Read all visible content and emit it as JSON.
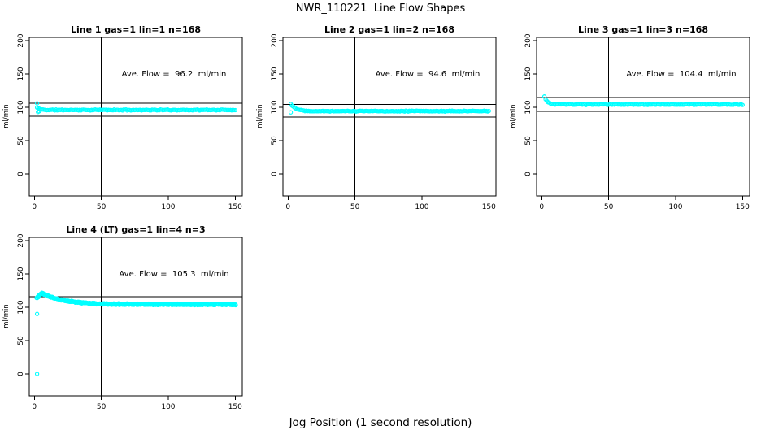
{
  "figure": {
    "title": "NWR_110221  Line Flow Shapes",
    "xlabel": "Jog Position (1 second resolution)",
    "background": "#ffffff",
    "marker_color": "#00FFFF",
    "line_color": "#000000"
  },
  "chart_data": [
    {
      "type": "scatter",
      "title": "Line 1 gas=1 lin=1 n=168",
      "ylabel": "ml/min",
      "annotation": "Ave. Flow =  96.2  ml/min",
      "ave_flow_ml_min": 96.2,
      "n_points": 168,
      "x_range": [
        2,
        150
      ],
      "x_ticks": [
        0,
        50,
        100,
        150
      ],
      "y_ticks": [
        0,
        50,
        100,
        150,
        200
      ],
      "ref_lines": [
        105.8,
        86.6
      ],
      "vline_x": 50,
      "marker": {
        "shape": "open-circle",
        "color": "#00FFFF"
      },
      "outliers": [
        [
          2,
          106
        ],
        [
          2.7,
          93
        ],
        [
          3.6,
          94
        ]
      ],
      "trend": {
        "start": 99.5,
        "peak": 99.5,
        "peak_x": 2,
        "decay_k": 2.0,
        "plateau": 96.0,
        "noise": 0.9,
        "points_per_x": 1,
        "seed": 11
      }
    },
    {
      "type": "scatter",
      "title": "Line 2 gas=1 lin=2 n=168",
      "ylabel": "ml/min",
      "annotation": "Ave. Flow =  94.6  ml/min",
      "ave_flow_ml_min": 94.6,
      "n_points": 168,
      "x_range": [
        2,
        150
      ],
      "x_ticks": [
        0,
        50,
        100,
        150
      ],
      "y_ticks": [
        0,
        50,
        100,
        150,
        200
      ],
      "ref_lines": [
        104.1,
        85.1
      ],
      "vline_x": 50,
      "marker": {
        "shape": "open-circle",
        "color": "#00FFFF"
      },
      "outliers": [
        [
          2,
          92.5
        ]
      ],
      "trend": {
        "start": 105,
        "peak": 105,
        "peak_x": 2,
        "decay_k": 4.0,
        "plateau": 94.3,
        "noise": 0.8,
        "points_per_x": 1,
        "seed": 22
      }
    },
    {
      "type": "scatter",
      "title": "Line 3 gas=1 lin=3 n=168",
      "ylabel": "ml/min",
      "annotation": "Ave. Flow =  104.4  ml/min",
      "ave_flow_ml_min": 104.4,
      "n_points": 168,
      "x_range": [
        2,
        150
      ],
      "x_ticks": [
        0,
        50,
        100,
        150
      ],
      "y_ticks": [
        0,
        50,
        100,
        150,
        200
      ],
      "ref_lines": [
        114.8,
        94.0
      ],
      "vline_x": 50,
      "marker": {
        "shape": "open-circle",
        "color": "#00FFFF"
      },
      "outliers": [
        [
          2,
          116
        ]
      ],
      "trend": {
        "start": 116,
        "peak": 116,
        "peak_x": 2,
        "decay_k": 2.2,
        "plateau": 104.2,
        "noise": 0.8,
        "points_per_x": 1,
        "seed": 33
      }
    },
    {
      "type": "scatter",
      "title": "Line 4 (LT) gas=1 lin=4 n=3",
      "ylabel": "ml/min",
      "annotation": "Ave. Flow =  105.3  ml/min",
      "ave_flow_ml_min": 105.3,
      "n_points": 168,
      "x_range": [
        2,
        150
      ],
      "x_ticks": [
        0,
        50,
        100,
        150
      ],
      "y_ticks": [
        0,
        50,
        100,
        150,
        200
      ],
      "ref_lines": [
        115.8,
        94.8
      ],
      "vline_x": 50,
      "marker": {
        "shape": "open-circle",
        "color": "#00FFFF"
      },
      "outliers": [
        [
          2,
          0
        ],
        [
          2,
          90
        ]
      ],
      "trend": {
        "start": 114,
        "peak": 121.5,
        "peak_x": 5.5,
        "decay_k": 16,
        "plateau": 104.2,
        "noise": 1.3,
        "points_per_x": 3,
        "seed": 44
      }
    }
  ]
}
